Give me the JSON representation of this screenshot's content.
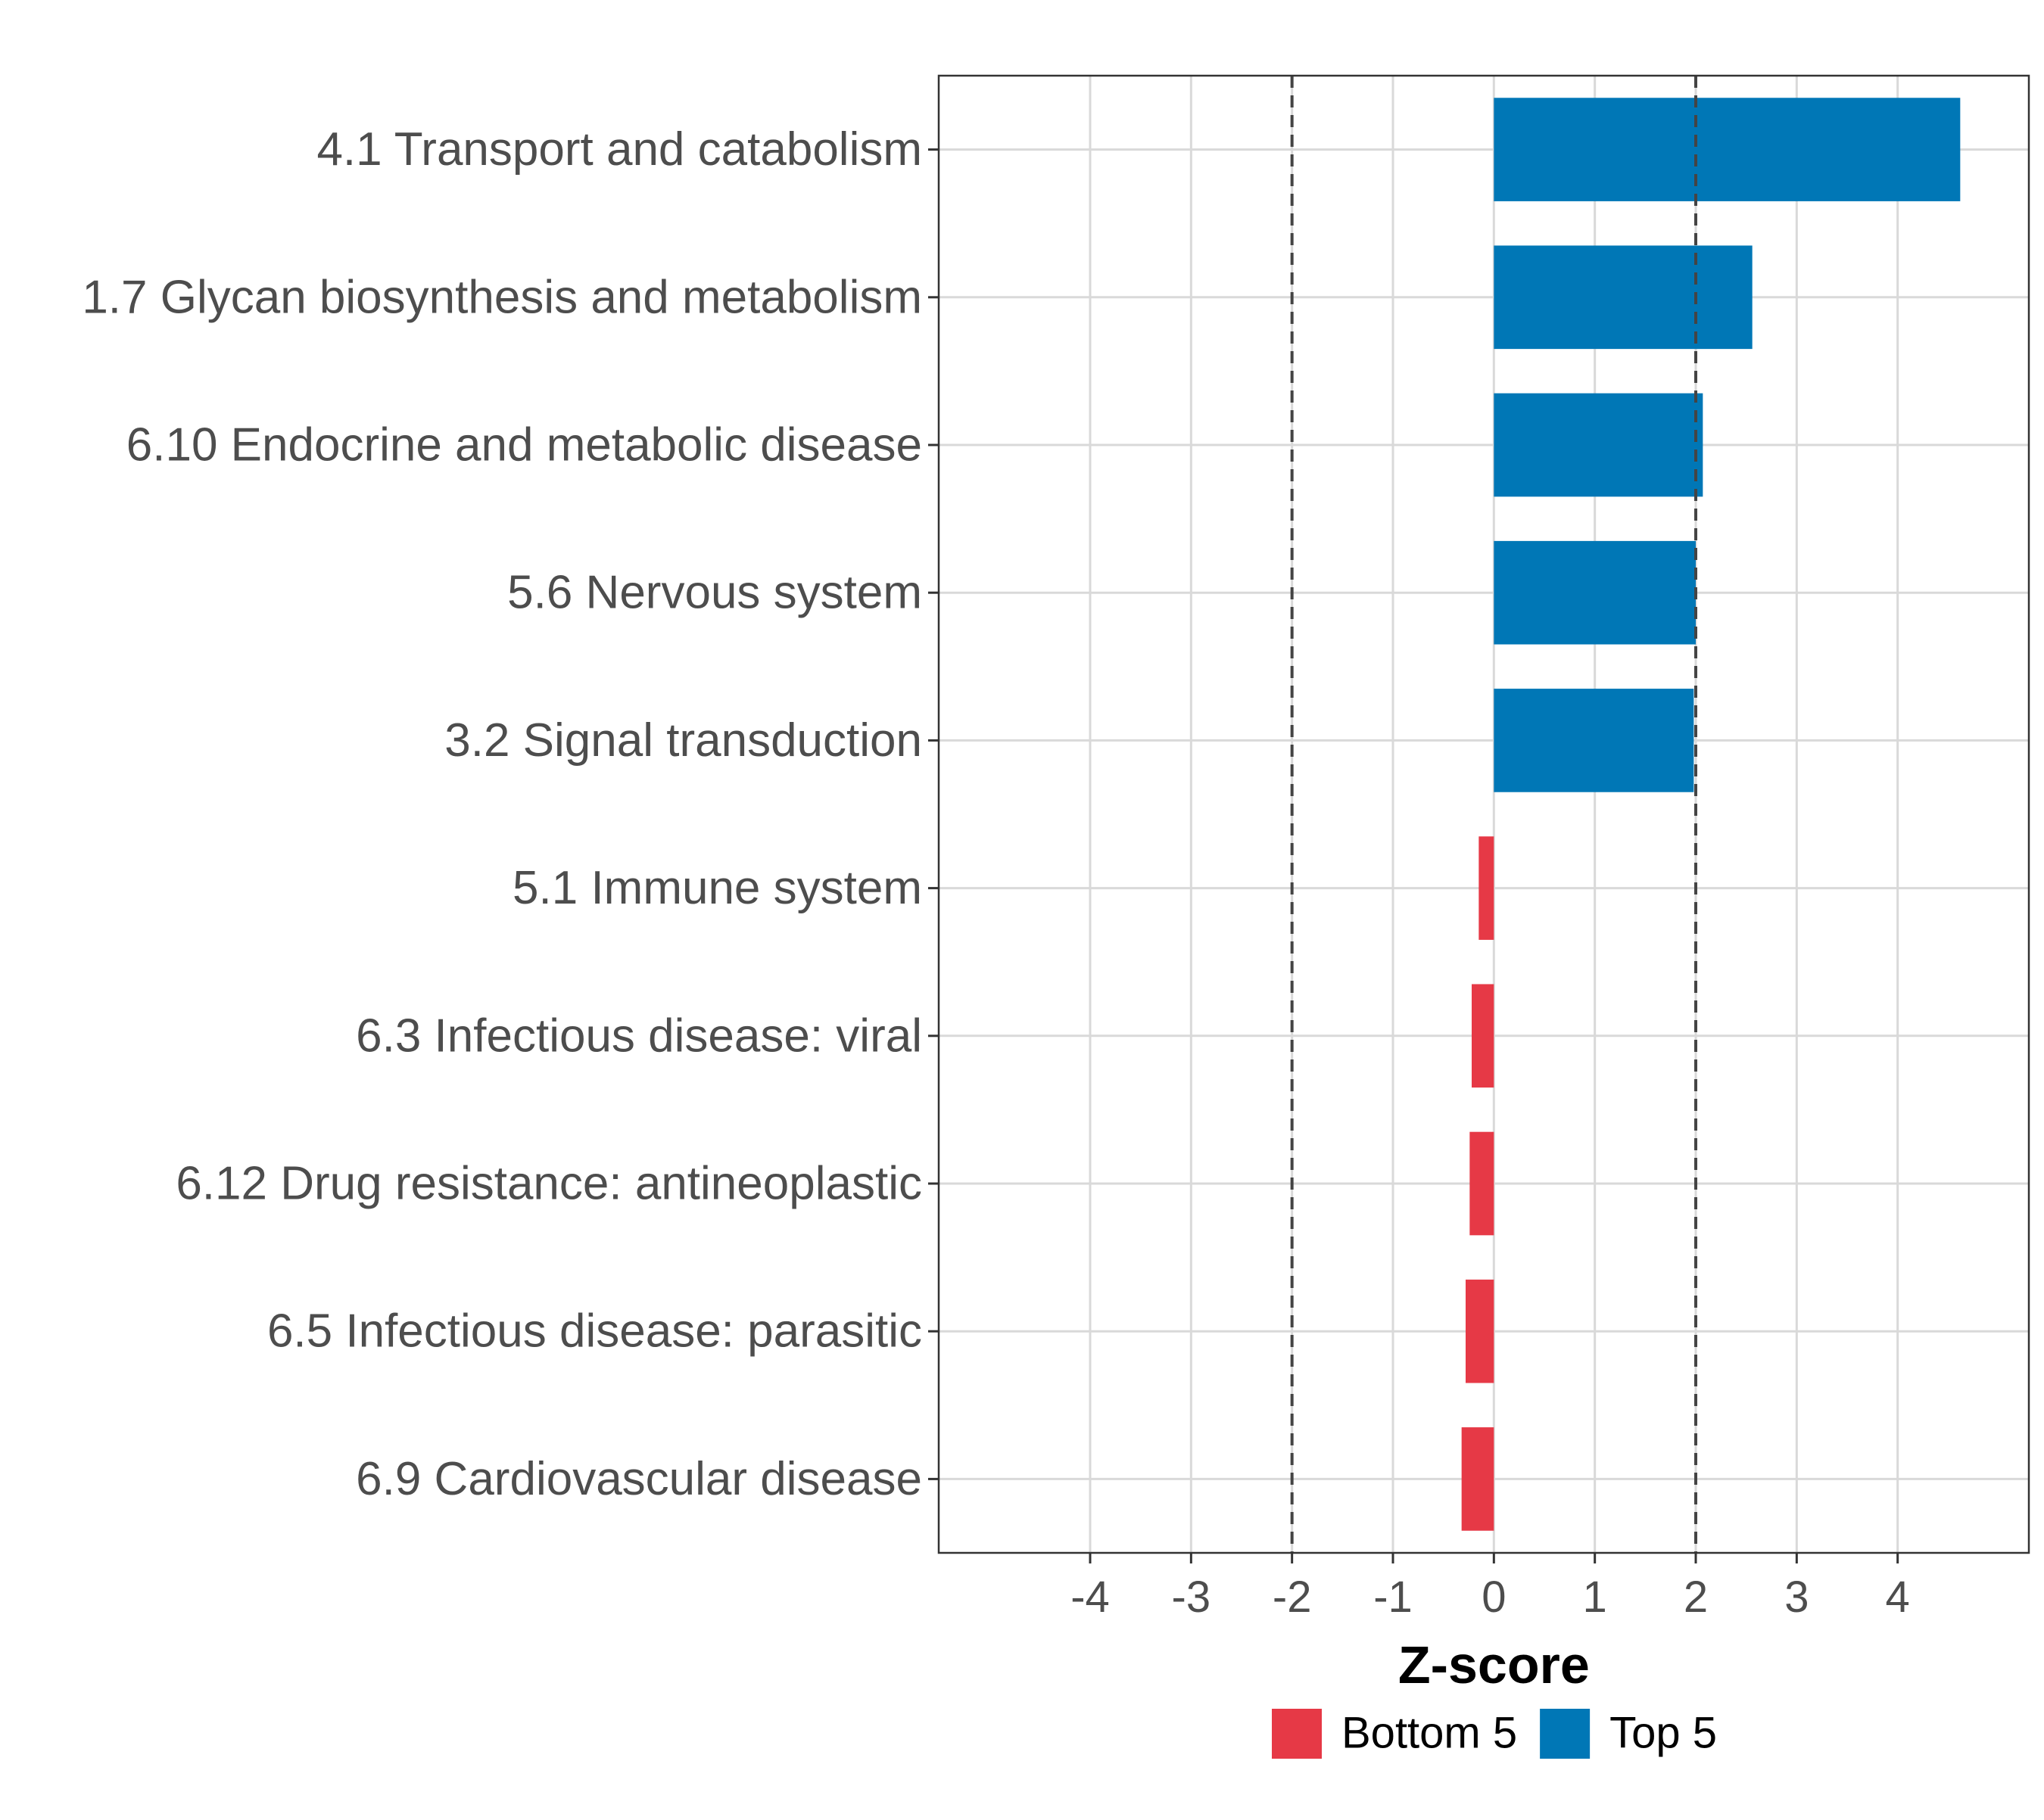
{
  "chart_data": {
    "type": "bar",
    "orientation": "horizontal",
    "title": "",
    "xlabel": "Z-score",
    "ylabel": "",
    "xlim": [
      -5.5,
      5.3
    ],
    "xticks": [
      -4,
      -3,
      -2,
      -1,
      0,
      1,
      2,
      3,
      4
    ],
    "xtick_labels": [
      "-4",
      "-3",
      "-2",
      "-1",
      "0",
      "1",
      "2",
      "3",
      "4"
    ],
    "reference_lines": [
      -2,
      2
    ],
    "grid": true,
    "categories": [
      "4.1 Transport and catabolism",
      "1.7 Glycan biosynthesis and metabolism",
      "6.10 Endocrine and metabolic disease",
      "5.6 Nervous system",
      "3.2 Signal transduction",
      "5.1 Immune system",
      "6.3 Infectious disease: viral",
      "6.12 Drug resistance: antineoplastic",
      "6.5 Infectious disease: parasitic",
      "6.9 Cardiovascular disease"
    ],
    "values": [
      4.62,
      2.56,
      2.07,
      2.0,
      1.98,
      -0.15,
      -0.22,
      -0.24,
      -0.28,
      -0.32
    ],
    "groups": [
      "Top 5",
      "Top 5",
      "Top 5",
      "Top 5",
      "Top 5",
      "Bottom 5",
      "Bottom 5",
      "Bottom 5",
      "Bottom 5",
      "Bottom 5"
    ],
    "legend": {
      "placement": "bottom",
      "entries": [
        {
          "name": "Bottom 5",
          "color": "#e63946"
        },
        {
          "name": "Top 5",
          "color": "#0077b6"
        }
      ]
    },
    "colors": {
      "Top 5": "#0077b6",
      "Bottom 5": "#e63946"
    }
  }
}
